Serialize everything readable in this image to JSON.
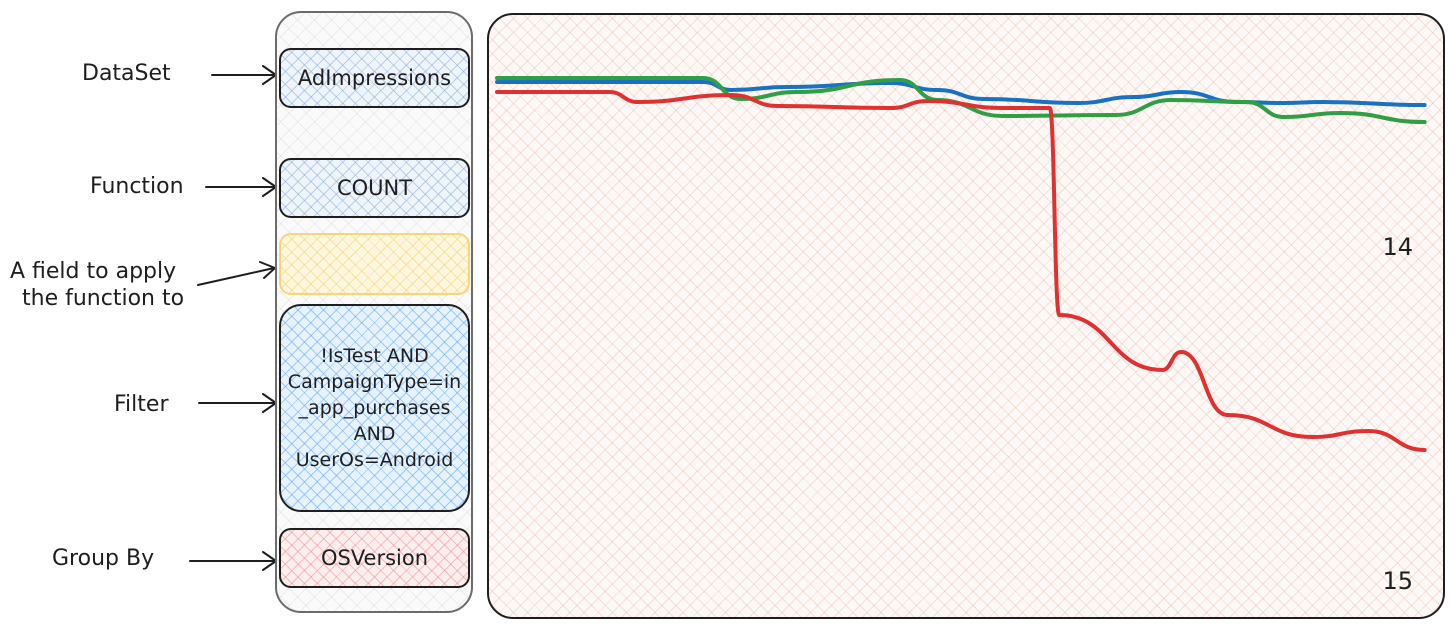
{
  "labels": {
    "dataset": "DataSet",
    "function": "Function",
    "field_line1": "A field to apply",
    "field_line2": "the function to",
    "filter": "Filter",
    "group_by": "Group By"
  },
  "boxes": {
    "dataset_value": "AdImpressions",
    "function_value": "COUNT",
    "field_value": "",
    "filter_lines": [
      "!IsTest AND",
      "CampaignType=in",
      "_app_purchases",
      "AND",
      "UserOs=Android"
    ],
    "group_by_value": "OSVersion"
  },
  "colors": {
    "blue_box": "#a5c8ed",
    "yellow_box": "#f5d77a",
    "sky_box": "#7fbfff",
    "pink_box": "#f2a6a6",
    "series_blue": "#1971c2",
    "series_green": "#2f9e44",
    "series_red": "#e03131"
  },
  "chart_data": {
    "type": "line",
    "series_labels": [
      "14",
      "15"
    ],
    "series": [
      {
        "color": "#1971c2",
        "values": [
          [
            0,
            0.73
          ],
          [
            0.22,
            0.73
          ],
          [
            0.25,
            0.65
          ],
          [
            0.31,
            0.68
          ],
          [
            0.42,
            0.72
          ],
          [
            0.47,
            0.65
          ],
          [
            0.52,
            0.56
          ],
          [
            0.62,
            0.52
          ],
          [
            0.68,
            0.58
          ],
          [
            0.73,
            0.63
          ],
          [
            0.79,
            0.53
          ],
          [
            0.84,
            0.52
          ],
          [
            0.88,
            0.53
          ],
          [
            0.99,
            0.5
          ]
        ]
      },
      {
        "color": "#2f9e44",
        "values": [
          [
            0,
            0.77
          ],
          [
            0.22,
            0.77
          ],
          [
            0.26,
            0.56
          ],
          [
            0.32,
            0.63
          ],
          [
            0.43,
            0.75
          ],
          [
            0.47,
            0.55
          ],
          [
            0.54,
            0.39
          ],
          [
            0.66,
            0.4
          ],
          [
            0.72,
            0.55
          ],
          [
            0.8,
            0.53
          ],
          [
            0.84,
            0.38
          ],
          [
            0.9,
            0.42
          ],
          [
            0.99,
            0.33
          ]
        ]
      },
      {
        "color": "#e03131",
        "values": [
          [
            0,
            0.63
          ],
          [
            0.12,
            0.63
          ],
          [
            0.15,
            0.53
          ],
          [
            0.25,
            0.6
          ],
          [
            0.3,
            0.49
          ],
          [
            0.42,
            0.47
          ],
          [
            0.46,
            0.54
          ],
          [
            0.54,
            0.47
          ],
          [
            0.59,
            0.47
          ],
          [
            0.6,
            -1.6
          ],
          [
            0.71,
            -2.15
          ],
          [
            0.73,
            -1.97
          ],
          [
            0.78,
            -2.6
          ],
          [
            0.87,
            -2.82
          ],
          [
            0.93,
            -2.76
          ],
          [
            0.99,
            -2.95
          ]
        ]
      }
    ]
  }
}
